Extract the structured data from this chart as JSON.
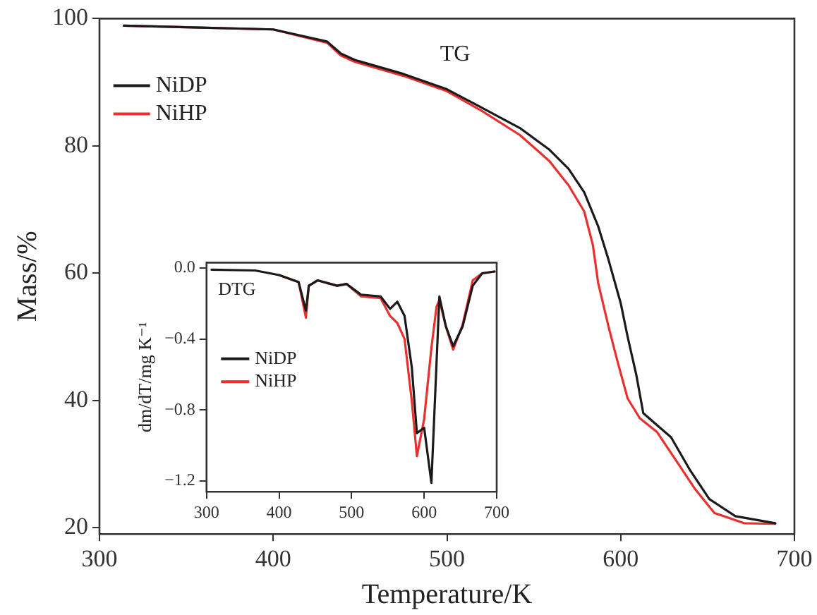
{
  "chart_data": [
    {
      "type": "line",
      "xlabel": "Temperature/K",
      "ylabel": "Mass/%",
      "annotations": [
        "TG"
      ],
      "legend": "top left",
      "xlim": [
        300,
        700
      ],
      "ylim": [
        19,
        100
      ],
      "xticks": [
        300,
        400,
        500,
        600,
        700
      ],
      "yticks": [
        20,
        40,
        60,
        80,
        100
      ],
      "series": [
        {
          "name": "NiDP",
          "color": "#1a1a1a",
          "x": [
            314,
            400,
            431,
            439,
            447,
            475,
            500,
            520,
            542,
            559,
            570,
            579,
            587,
            593,
            600,
            604,
            609,
            613,
            621,
            629,
            640,
            651,
            666,
            689
          ],
          "values": [
            98.9,
            98.3,
            96.4,
            94.5,
            93.5,
            91.3,
            88.9,
            86,
            82.8,
            79.4,
            76.4,
            72.7,
            67.4,
            62.1,
            55.3,
            50,
            44,
            38,
            36.1,
            34.2,
            29,
            24.5,
            21.8,
            20.7
          ]
        },
        {
          "name": "NiHP",
          "color": "#e8302f",
          "x": [
            314,
            400,
            431,
            439,
            447,
            475,
            500,
            520,
            542,
            559,
            570,
            579,
            584,
            587,
            593,
            598,
            604,
            611,
            621,
            632,
            643,
            654,
            671,
            689
          ],
          "values": [
            98.9,
            98.3,
            96.2,
            94.2,
            93.2,
            91,
            88.6,
            85.5,
            81.7,
            77.6,
            73.8,
            69.7,
            64.4,
            58.5,
            51.6,
            46.3,
            40.3,
            37.2,
            35,
            30.5,
            26,
            22.3,
            20.7,
            20.6
          ]
        }
      ]
    },
    {
      "type": "line",
      "ylabel": "dm/dT/mg K⁻¹",
      "annotations": [
        "DTG"
      ],
      "legend": "top left",
      "xlim": [
        300,
        700
      ],
      "ylim": [
        -1.26,
        0.03
      ],
      "xticks": [
        300,
        400,
        500,
        600,
        700
      ],
      "yticks": [
        {
          "value": 0,
          "label": "0.0"
        },
        {
          "value": -0.4,
          "label": "−0.4"
        },
        {
          "value": -0.8,
          "label": "−0.8"
        },
        {
          "value": -1.2,
          "label": "−1.2"
        }
      ],
      "series": [
        {
          "name": "NiDP",
          "color": "#1a1a1a",
          "x": [
            307,
            367,
            400,
            427,
            437,
            441,
            453,
            480,
            493,
            513,
            540,
            553,
            563,
            573,
            583,
            590,
            600,
            610,
            621,
            630,
            640,
            653,
            667,
            680,
            697
          ],
          "values": [
            -0.01,
            -0.014,
            -0.04,
            -0.08,
            -0.24,
            -0.1,
            -0.07,
            -0.1,
            -0.09,
            -0.15,
            -0.16,
            -0.23,
            -0.19,
            -0.27,
            -0.56,
            -0.93,
            -0.9,
            -1.21,
            -0.16,
            -0.33,
            -0.44,
            -0.33,
            -0.1,
            -0.03,
            -0.02
          ]
        },
        {
          "name": "NiHP",
          "color": "#e8302f",
          "x": [
            400,
            427,
            437,
            441,
            453,
            480,
            493,
            513,
            540,
            553,
            563,
            573,
            583,
            590,
            600,
            610,
            617,
            621,
            630,
            640,
            653,
            667,
            680,
            697
          ],
          "values": [
            -0.04,
            -0.08,
            -0.28,
            -0.1,
            -0.07,
            -0.1,
            -0.09,
            -0.16,
            -0.17,
            -0.27,
            -0.31,
            -0.4,
            -0.75,
            -1.06,
            -0.85,
            -0.45,
            -0.22,
            -0.18,
            -0.33,
            -0.46,
            -0.32,
            -0.07,
            -0.03,
            -0.02
          ]
        }
      ]
    }
  ]
}
